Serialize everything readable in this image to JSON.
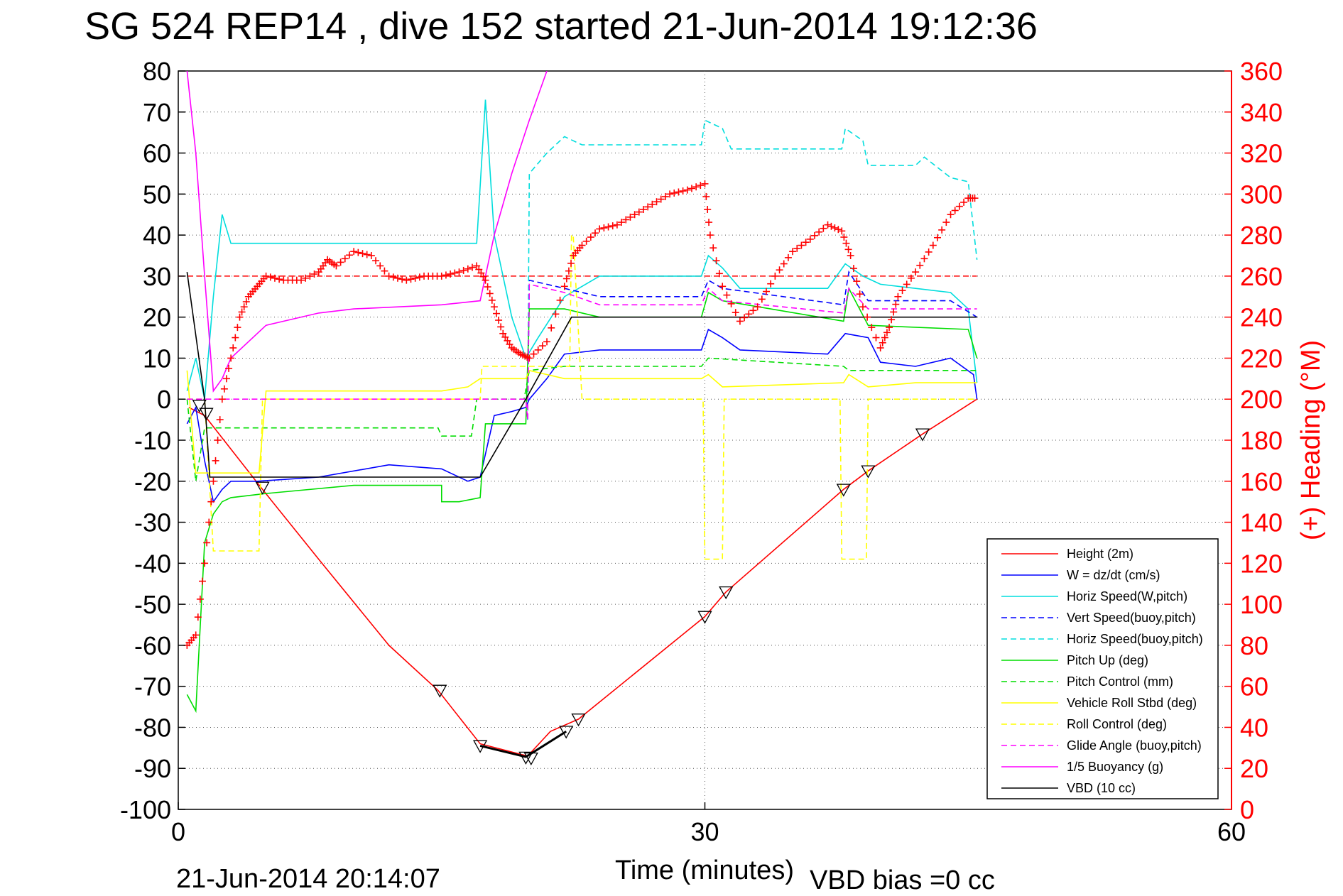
{
  "chart_data": {
    "type": "line",
    "title": "SG 524   REP14  , dive 152 started 21-Jun-2014 19:12:36",
    "xlabel": "Time (minutes)",
    "ylabel_right": "(+) Heading (°M)",
    "xlim": [
      0,
      60
    ],
    "ylim": [
      -100,
      80
    ],
    "ylim_right": [
      0,
      360
    ],
    "x_ticks": [
      "0",
      "30",
      "60"
    ],
    "y_ticks": [
      "80",
      "70",
      "60",
      "50",
      "40",
      "30",
      "20",
      "10",
      "0",
      "-10",
      "-20",
      "-30",
      "-40",
      "-50",
      "-60",
      "-70",
      "-80",
      "-90",
      "-100"
    ],
    "y_right_ticks": [
      "360",
      "340",
      "320",
      "300",
      "280",
      "260",
      "240",
      "220",
      "200",
      "180",
      "160",
      "140",
      "120",
      "100",
      "80",
      "60",
      "40",
      "20",
      "0"
    ],
    "grid": true,
    "legend_position": "bottom-right",
    "footer_left": "21-Jun-2014 20:14:07",
    "footer_right": "VBD bias =0 cc",
    "target_heading": 260,
    "series": [
      {
        "name": "Height (2m)",
        "color": "#ff0000",
        "dash": "solid",
        "x": [
          0.6,
          1.5,
          4.8,
          8,
          12,
          14.8,
          17.2,
          19.9,
          21.2,
          22.8,
          30,
          31.2,
          37.9,
          39.3,
          42.4,
          45.5
        ],
        "y": [
          -2,
          -4,
          -22,
          -39,
          -60,
          -71,
          -84,
          -87,
          -81,
          -78,
          -53,
          -47,
          -22,
          -17.5,
          -8.5,
          0
        ]
      },
      {
        "name": "W = dz/dt (cm/s)",
        "color": "#0000ff",
        "dash": "solid",
        "x": [
          0.5,
          1.0,
          1.5,
          2.0,
          2.5,
          3.0,
          4.5,
          8,
          12,
          15,
          16.5,
          17.2,
          18,
          19,
          19.8,
          20,
          21,
          22,
          24,
          29.8,
          30.2,
          31,
          32,
          37,
          38,
          39.3,
          40,
          42,
          44,
          45.3,
          45.5
        ],
        "y": [
          -6,
          -2,
          -15,
          -25,
          -22,
          -20,
          -20,
          -19,
          -16,
          -17,
          -20,
          -19,
          -4,
          -3,
          -2,
          0,
          5,
          11,
          12,
          12,
          17,
          15,
          12,
          11,
          16,
          15,
          9,
          8,
          10,
          6,
          0
        ]
      },
      {
        "name": "Horiz Speed(W,pitch)",
        "color": "#00dddd",
        "dash": "solid",
        "x": [
          0.5,
          1.0,
          1.5,
          2.0,
          2.5,
          3.0,
          5,
          8,
          12,
          16,
          17.0,
          17.5,
          18.0,
          19.0,
          19.8,
          20.5,
          22,
          24,
          29.8,
          30.2,
          31,
          32,
          37,
          38,
          39,
          40,
          42,
          44,
          45,
          45.5
        ],
        "y": [
          2,
          10,
          0,
          25,
          45,
          38,
          38,
          38,
          38,
          38,
          38,
          73,
          40,
          20,
          10,
          15,
          25,
          30,
          30,
          35,
          32,
          27,
          27,
          33,
          30,
          28,
          27,
          26,
          22,
          4
        ]
      },
      {
        "name": "Vert Speed(buoy,pitch)",
        "color": "#0000ff",
        "dash": "dashed",
        "x": [
          19.9,
          20,
          22,
          24,
          29.8,
          30.2,
          31,
          37.9,
          38.2,
          39.3,
          44,
          45.5
        ],
        "y": [
          -5,
          29,
          27,
          25,
          25,
          29,
          27,
          23,
          31,
          24,
          24,
          20
        ]
      },
      {
        "name": "Horiz Speed(buoy,pitch)",
        "color": "#00dddd",
        "dash": "dashed",
        "x": [
          19.9,
          20,
          21,
          22,
          23,
          29.8,
          30,
          31,
          31.5,
          37.8,
          38,
          39,
          39.3,
          42,
          42.5,
          44,
          45,
          45.5
        ],
        "y": [
          -5,
          55,
          60,
          64,
          62,
          62,
          68,
          66,
          61,
          61,
          66,
          63,
          57,
          57,
          59,
          54,
          53,
          34
        ]
      },
      {
        "name": "Pitch Up (deg)",
        "color": "#00dd00",
        "dash": "solid",
        "x": [
          0.5,
          1.0,
          1.5,
          2.0,
          2.5,
          3,
          5,
          10,
          15,
          15,
          16,
          17.2,
          17.5,
          19.8,
          20,
          22,
          24,
          29.8,
          30.2,
          31,
          37.9,
          38.2,
          39.3,
          45,
          45.5
        ],
        "y": [
          -72,
          -76,
          -35,
          -28,
          -25,
          -24,
          -23,
          -21,
          -21,
          -25,
          -25,
          -24,
          -6,
          -6,
          22,
          22,
          20,
          20,
          26,
          24,
          19,
          27,
          18,
          17,
          10
        ]
      },
      {
        "name": "Pitch Control (mm)",
        "color": "#00dd00",
        "dash": "dashed",
        "x": [
          0.5,
          1.0,
          1.5,
          3,
          14.8,
          15,
          16.7,
          17.0,
          19.7,
          20,
          22,
          29.8,
          30.2,
          37.9,
          38.2,
          39.3,
          42,
          45.5
        ],
        "y": [
          0,
          -20,
          -7,
          -7,
          -7,
          -9,
          -9,
          0,
          0,
          7,
          8,
          8,
          10,
          8,
          7,
          7,
          7,
          7
        ]
      },
      {
        "name": "Vehicle Roll Stbd (deg)",
        "color": "#ffff00",
        "dash": "solid",
        "x": [
          0.5,
          1.0,
          1.5,
          4.6,
          5.0,
          10,
          15,
          16.5,
          17.2,
          19.8,
          20,
          22,
          29.8,
          30.2,
          31,
          37.9,
          38.2,
          39.3,
          42,
          45.5
        ],
        "y": [
          7,
          -18,
          -18,
          -18,
          2,
          2,
          2,
          3,
          5,
          5,
          7,
          5,
          5,
          6,
          3,
          4,
          6,
          3,
          4,
          4
        ]
      },
      {
        "name": "Roll Control (deg)",
        "color": "#ffff00",
        "dash": "dashed",
        "x": [
          0.5,
          1.5,
          2.0,
          4.6,
          4.8,
          5.0,
          17.2,
          17.3,
          22.3,
          22.4,
          22.5,
          23,
          23.1,
          29.9,
          30,
          31,
          31.1,
          37.7,
          37.8,
          39.2,
          39.3,
          45.5
        ],
        "y": [
          0,
          0,
          -37,
          -37,
          0,
          0,
          0,
          8,
          8,
          40,
          40,
          0,
          0,
          0,
          -39,
          -39,
          0,
          0,
          -39,
          -39,
          0,
          0
        ]
      },
      {
        "name": "Glide Angle (buoy,pitch)",
        "color": "#ff00ff",
        "dash": "dashed",
        "x": [
          0.5,
          19.8,
          19.9,
          20,
          22,
          24,
          29.8,
          30.2,
          31,
          37.9,
          38.2,
          39.3,
          45.5
        ],
        "y": [
          0,
          0,
          -5,
          28,
          26,
          23,
          23,
          27,
          24,
          21,
          27,
          22,
          22
        ]
      },
      {
        "name": "1/5 Buoyancy (g)",
        "color": "#ff00ff",
        "dash": "solid",
        "x": [
          0.5,
          1.0,
          1.5,
          2.0,
          2.5,
          3,
          5,
          8,
          10,
          15,
          17.2,
          18,
          19,
          20,
          21
        ],
        "y": [
          80,
          60,
          30,
          2,
          5,
          10,
          18,
          21,
          22,
          23,
          24,
          40,
          55,
          68,
          80
        ]
      },
      {
        "name": "VBD (10 cc)",
        "color": "#000000",
        "dash": "solid",
        "x": [
          0.5,
          1.5,
          1.8,
          4.8,
          15,
          17.2,
          19.8,
          22.4,
          30,
          45.5
        ],
        "y": [
          31,
          0,
          -19,
          -19,
          -19,
          -19,
          0,
          20,
          20,
          20
        ]
      }
    ],
    "heading_series": {
      "name": "Heading",
      "color": "#ff0000",
      "x": [
        0.5,
        1.0,
        1.5,
        2.0,
        2.5,
        3.0,
        3.5,
        4.0,
        4.5,
        5.0,
        6,
        7,
        8,
        8.5,
        9,
        10,
        11,
        12,
        13,
        14,
        15,
        16,
        17,
        17.5,
        18,
        18.5,
        19,
        19.5,
        20,
        21,
        22,
        22.5,
        23,
        24,
        25,
        26,
        27,
        28,
        29,
        30,
        30.3,
        31,
        32,
        33,
        34,
        35,
        36,
        37,
        37.8,
        38.3,
        39,
        40,
        40.5,
        41,
        42,
        43,
        44,
        45,
        45.5
      ],
      "y": [
        80,
        85,
        120,
        160,
        200,
        220,
        240,
        250,
        255,
        260,
        258,
        258,
        262,
        268,
        265,
        272,
        270,
        260,
        258,
        260,
        260,
        262,
        265,
        258,
        245,
        232,
        225,
        222,
        220,
        228,
        255,
        270,
        275,
        283,
        285,
        290,
        295,
        300,
        302,
        305,
        280,
        255,
        238,
        245,
        260,
        272,
        278,
        285,
        282,
        270,
        245,
        225,
        235,
        250,
        262,
        275,
        290,
        298,
        298
      ]
    },
    "markers": [
      {
        "x": 1.2,
        "y": -1.5
      },
      {
        "x": 1.6,
        "y": -3.5
      },
      {
        "x": 4.8,
        "y": -21.5
      },
      {
        "x": 14.9,
        "y": -71
      },
      {
        "x": 17.2,
        "y": -84.5
      },
      {
        "x": 19.8,
        "y": -87.3
      },
      {
        "x": 20.1,
        "y": -87.5
      },
      {
        "x": 22.1,
        "y": -81
      },
      {
        "x": 22.8,
        "y": -78
      },
      {
        "x": 30.0,
        "y": -53
      },
      {
        "x": 31.2,
        "y": -47
      },
      {
        "x": 37.9,
        "y": -22
      },
      {
        "x": 39.3,
        "y": -17.5
      },
      {
        "x": 42.4,
        "y": -8.5
      }
    ]
  }
}
